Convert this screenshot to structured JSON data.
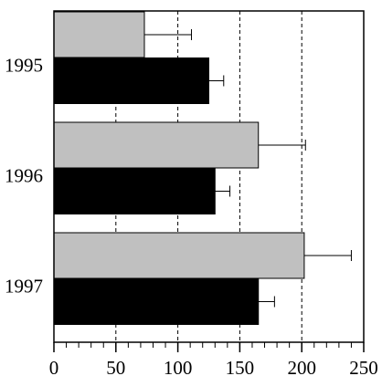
{
  "chart_data": {
    "type": "bar",
    "orientation": "horizontal",
    "categories": [
      "1995",
      "1996",
      "1997"
    ],
    "series": [
      {
        "color": "#c0c0c0",
        "values": [
          73,
          165,
          202
        ],
        "errors": [
          38,
          38,
          38
        ]
      },
      {
        "color": "#000000",
        "values": [
          125,
          130,
          165
        ],
        "errors": [
          12,
          12,
          13
        ]
      }
    ],
    "xlim": [
      0,
      250
    ],
    "xticks": [
      0,
      50,
      100,
      150,
      200,
      250
    ],
    "minor_tick_step": 10,
    "grid": true
  }
}
